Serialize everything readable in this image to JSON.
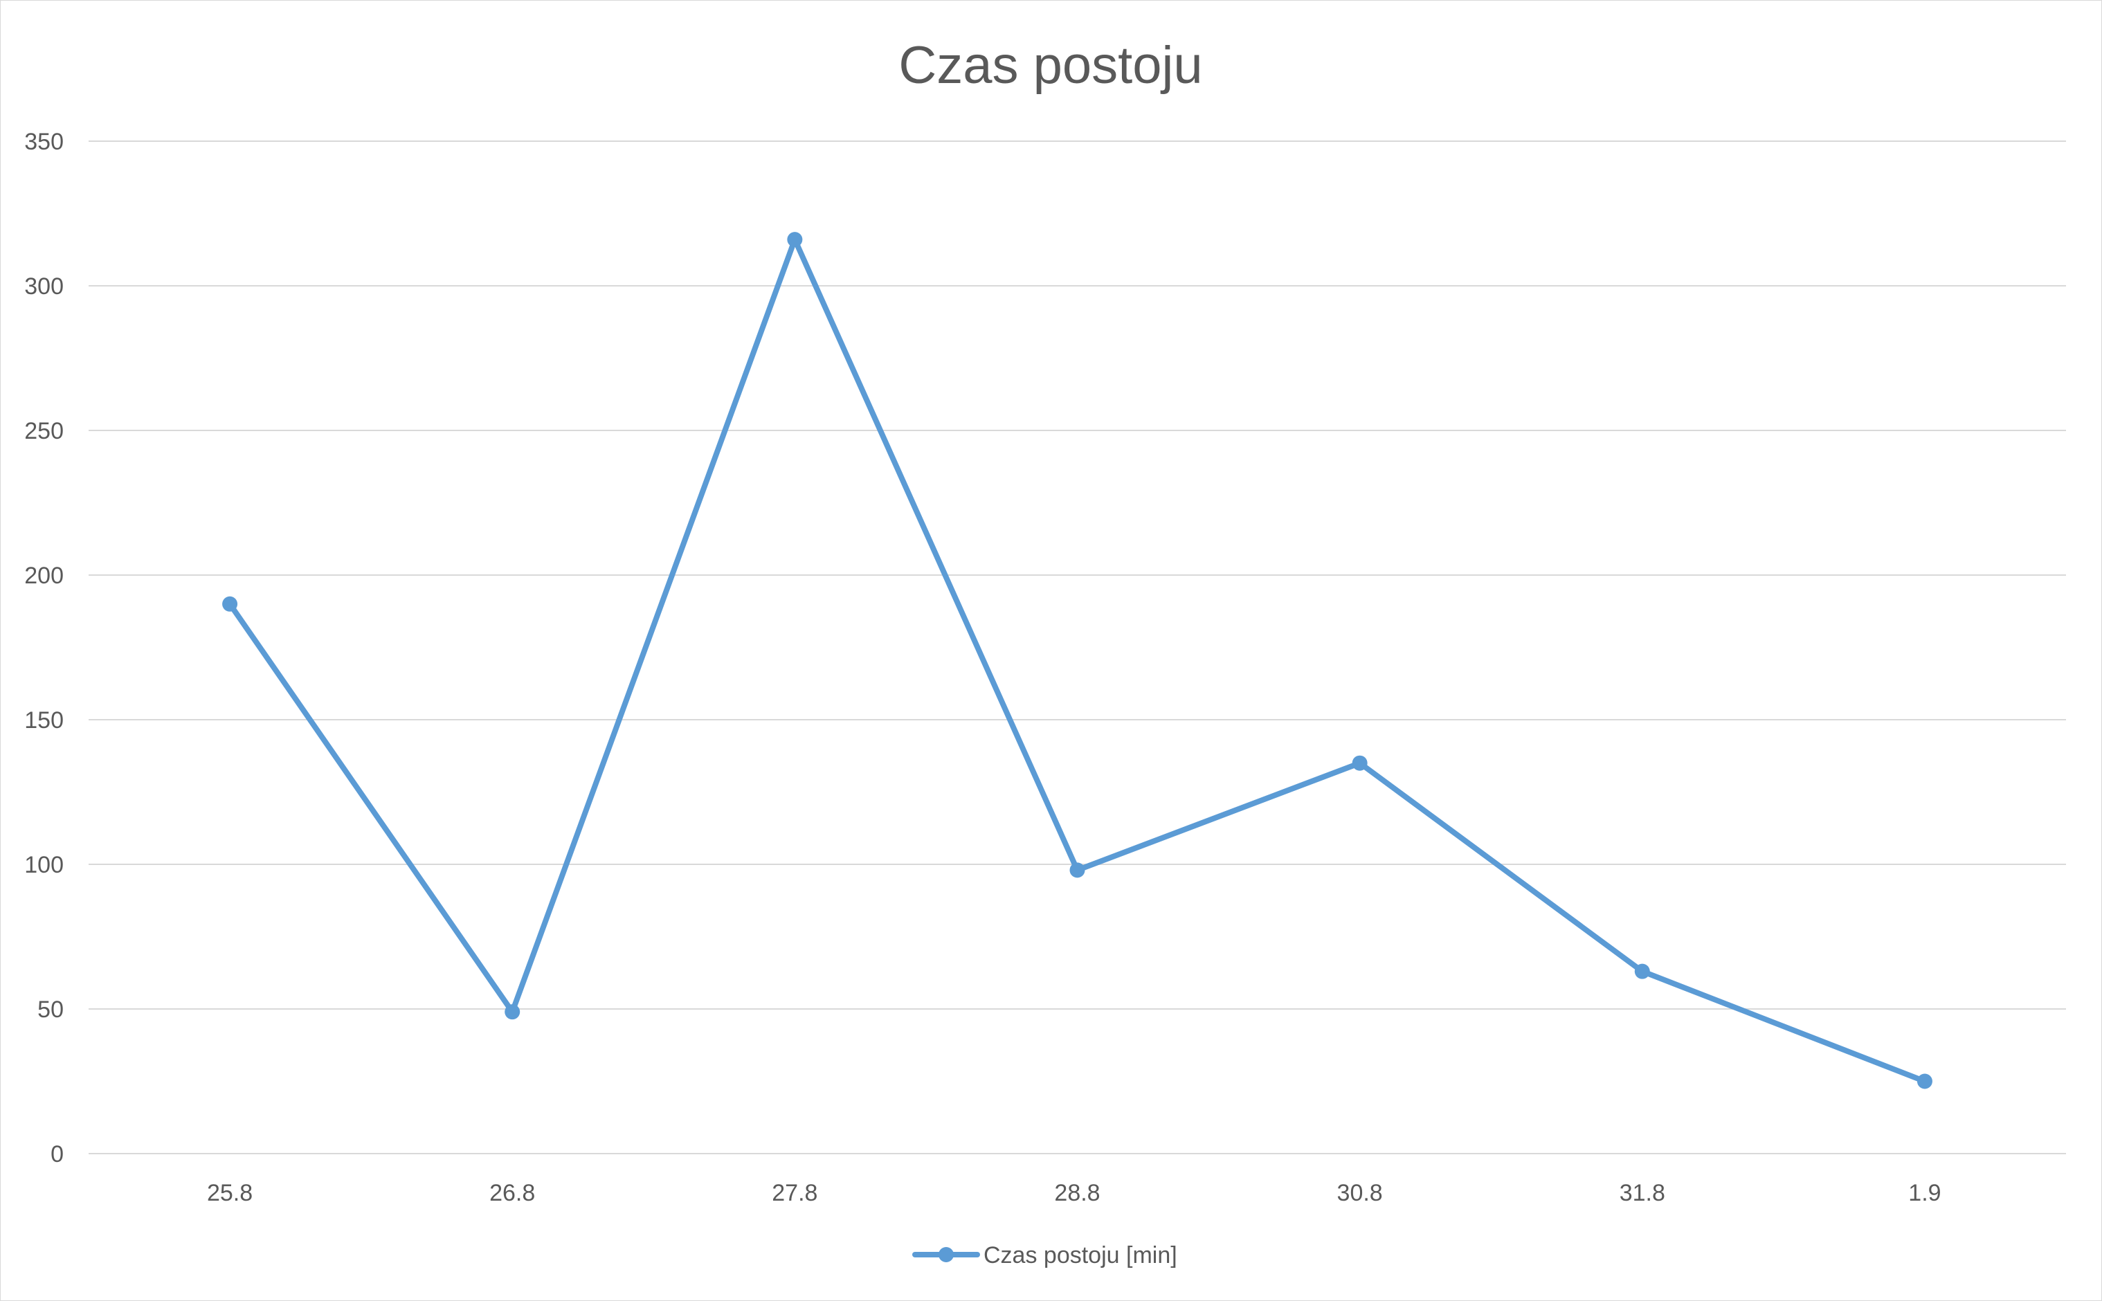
{
  "chart_data": {
    "type": "line",
    "title": "Czas postoju",
    "categories": [
      "25.8",
      "26.8",
      "27.8",
      "28.8",
      "30.8",
      "31.8",
      "1.9"
    ],
    "series": [
      {
        "name": "Czas postoju [min]",
        "values": [
          190,
          49,
          316,
          98,
          135,
          63,
          25
        ],
        "color": "#5b9bd5"
      }
    ],
    "ylim": [
      0,
      350
    ],
    "yticks": [
      "0",
      "50",
      "100",
      "150",
      "200",
      "250",
      "300",
      "350"
    ],
    "grid": true,
    "legend": "bottom"
  }
}
